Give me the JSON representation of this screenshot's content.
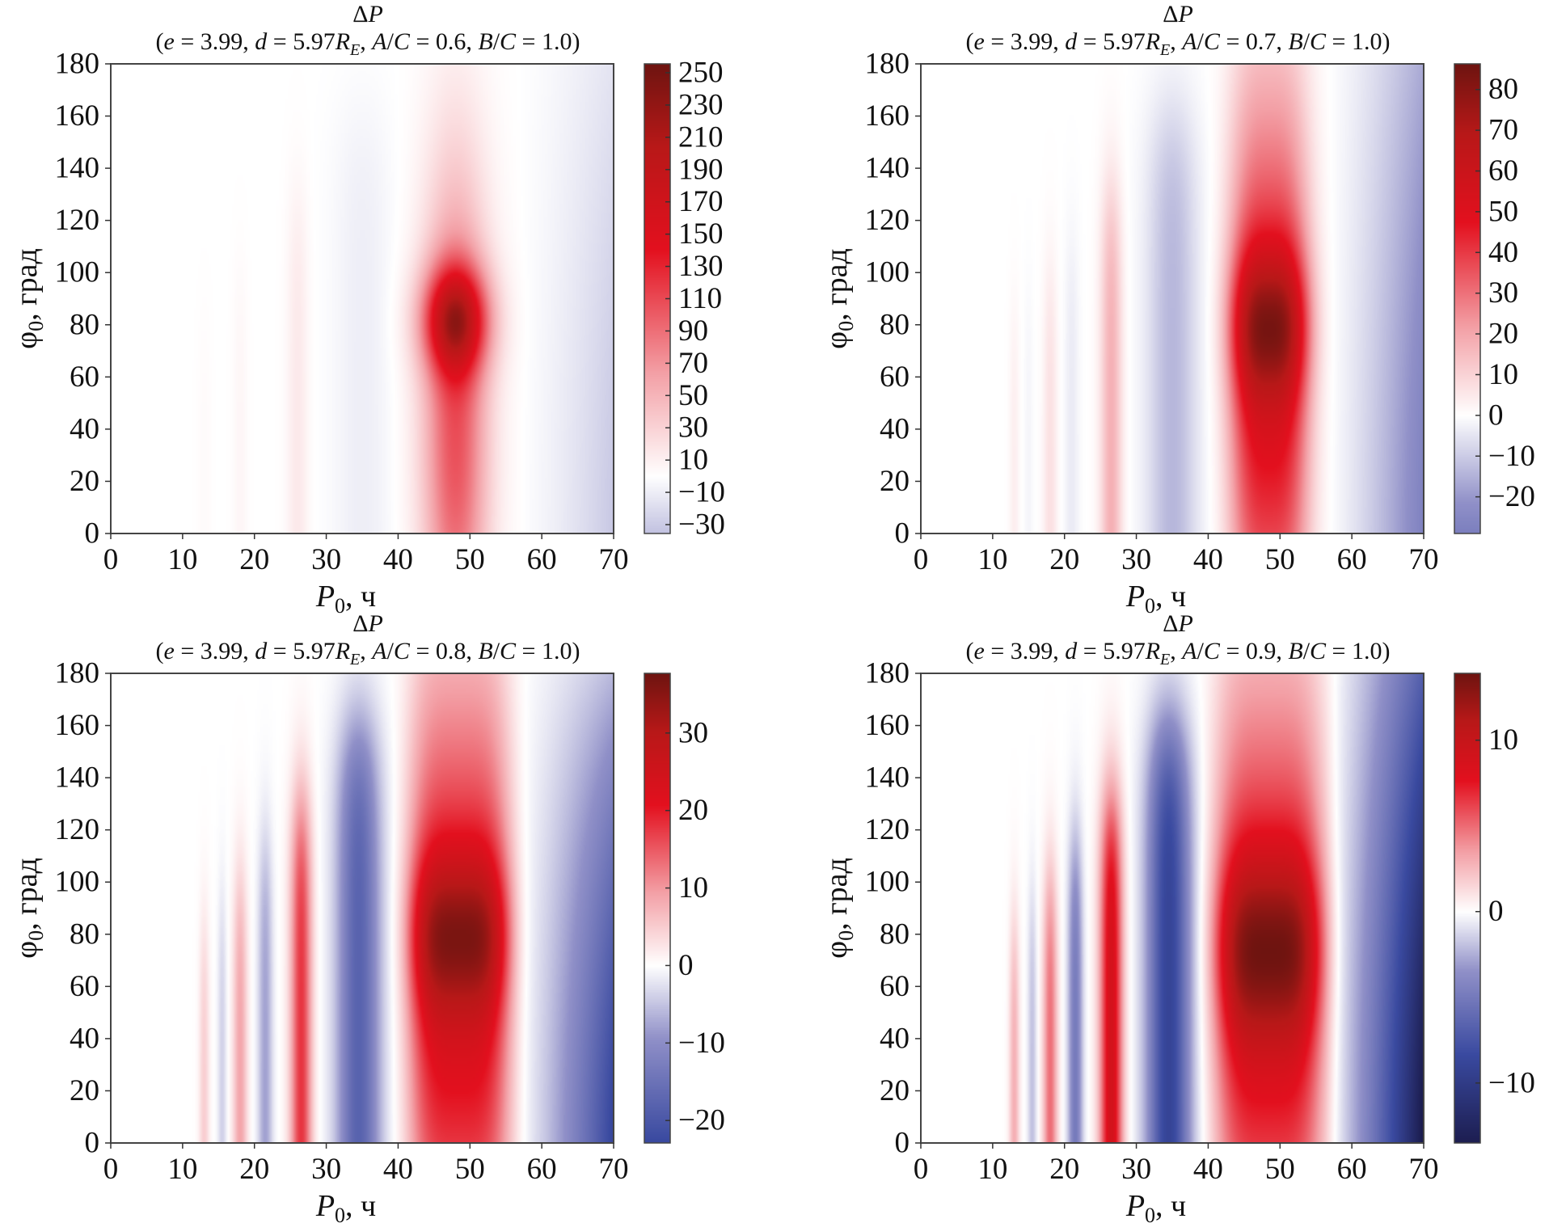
{
  "chart_data": [
    {
      "type": "heatmap",
      "title": "ΔP",
      "subtitle_segments": [
        [
          "(",
          ""
        ],
        [
          "e",
          "i"
        ],
        [
          " = 3.99, ",
          ""
        ],
        [
          "d",
          "i"
        ],
        [
          " = 5.97",
          ""
        ],
        [
          "R",
          "i"
        ],
        [
          "E",
          "sub"
        ],
        [
          ", ",
          ""
        ],
        [
          "A",
          "i"
        ],
        [
          "/",
          ""
        ],
        [
          "C",
          "i"
        ],
        [
          " = 0.6, ",
          ""
        ],
        [
          "B",
          "i"
        ],
        [
          "/",
          ""
        ],
        [
          "C",
          "i"
        ],
        [
          " = 1.0)",
          ""
        ]
      ],
      "xlabel": "P",
      "xlabel_sub": "0",
      "xlabel_unit": ", ч",
      "ylabel": "φ",
      "ylabel_sub": "0",
      "ylabel_unit": ", град",
      "xlim": [
        0,
        70
      ],
      "ylim": [
        0,
        180
      ],
      "xticks": [
        "0",
        "10",
        "20",
        "30",
        "40",
        "50",
        "60",
        "70"
      ],
      "yticks": [
        "0",
        "20",
        "40",
        "60",
        "80",
        "100",
        "120",
        "140",
        "160",
        "180"
      ],
      "colorbar": {
        "range": [
          -35.5,
          255.5
        ],
        "norm_abs_max": 255.5,
        "ticks": [
          "250",
          "230",
          "210",
          "190",
          "170",
          "150",
          "130",
          "110",
          "90",
          "70",
          "50",
          "30",
          "10",
          "−10",
          "−30"
        ],
        "tick_values": [
          250,
          230,
          210,
          190,
          170,
          150,
          130,
          110,
          90,
          70,
          50,
          30,
          10,
          -10,
          -30
        ]
      },
      "model": {
        "main": {
          "P0": 48,
          "width": 4.5,
          "power": 2,
          "amplitude": 255,
          "base": 0.42,
          "base_center": 40,
          "base_sigma": 95,
          "peak": 0.58,
          "peak_center": 82,
          "peak_sigma": 20
        },
        "bands": [
          [
            13,
            1,
            3
          ],
          [
            18,
            1,
            6
          ],
          [
            26,
            1.5,
            15
          ],
          [
            35,
            4,
            -10
          ]
        ],
        "right": {
          "amplitude": -32,
          "top_fade": 0.5
        }
      }
    },
    {
      "type": "heatmap",
      "title": "ΔP",
      "subtitle_segments": [
        [
          "(",
          ""
        ],
        [
          "e",
          "i"
        ],
        [
          " = 3.99, ",
          ""
        ],
        [
          "d",
          "i"
        ],
        [
          " = 5.97",
          ""
        ],
        [
          "R",
          "i"
        ],
        [
          "E",
          "sub"
        ],
        [
          ", ",
          ""
        ],
        [
          "A",
          "i"
        ],
        [
          "/",
          ""
        ],
        [
          "C",
          "i"
        ],
        [
          " = 0.7, ",
          ""
        ],
        [
          "B",
          "i"
        ],
        [
          "/",
          ""
        ],
        [
          "C",
          "i"
        ],
        [
          " = 1.0)",
          ""
        ]
      ],
      "xlabel": "P",
      "xlabel_sub": "0",
      "xlabel_unit": ", ч",
      "ylabel": "φ",
      "ylabel_sub": "0",
      "ylabel_unit": ", град",
      "xlim": [
        0,
        70
      ],
      "ylim": [
        0,
        180
      ],
      "xticks": [
        "0",
        "10",
        "20",
        "30",
        "40",
        "50",
        "60",
        "70"
      ],
      "yticks": [
        "0",
        "20",
        "40",
        "60",
        "80",
        "100",
        "120",
        "140",
        "160",
        "180"
      ],
      "colorbar": {
        "range": [
          -29,
          86.3
        ],
        "norm_abs_max": 86.3,
        "ticks": [
          "80",
          "70",
          "60",
          "50",
          "40",
          "30",
          "20",
          "10",
          "0",
          "−10",
          "−20"
        ],
        "tick_values": [
          80,
          70,
          60,
          50,
          40,
          30,
          20,
          10,
          0,
          -10,
          -20
        ]
      },
      "model": {
        "main": {
          "P0": 48.5,
          "width": 5.5,
          "power": 3,
          "amplitude": 86,
          "base": 0.6,
          "base_center": 60,
          "base_sigma": 110,
          "peak": 0.4,
          "peak_center": 80,
          "peak_sigma": 28
        },
        "bands": [
          [
            13,
            0.7,
            4
          ],
          [
            15,
            0.6,
            -2
          ],
          [
            18,
            1,
            7
          ],
          [
            21,
            1,
            -4
          ],
          [
            26.5,
            1.5,
            18
          ],
          [
            35,
            3.5,
            -14
          ]
        ],
        "right": {
          "amplitude": -28,
          "top_fade": 0.4
        }
      }
    },
    {
      "type": "heatmap",
      "title": "ΔP",
      "subtitle_segments": [
        [
          "(",
          ""
        ],
        [
          "e",
          "i"
        ],
        [
          " = 3.99, ",
          ""
        ],
        [
          "d",
          "i"
        ],
        [
          " = 5.97",
          ""
        ],
        [
          "R",
          "i"
        ],
        [
          "E",
          "sub"
        ],
        [
          ", ",
          ""
        ],
        [
          "A",
          "i"
        ],
        [
          "/",
          ""
        ],
        [
          "C",
          "i"
        ],
        [
          " = 0.8, ",
          ""
        ],
        [
          "B",
          "i"
        ],
        [
          "/",
          ""
        ],
        [
          "C",
          "i"
        ],
        [
          " = 1.0)",
          ""
        ]
      ],
      "xlabel": "P",
      "xlabel_sub": "0",
      "xlabel_unit": ", ч",
      "ylabel": "φ",
      "ylabel_sub": "0",
      "ylabel_unit": ", град",
      "xlim": [
        0,
        70
      ],
      "ylim": [
        0,
        180
      ],
      "xticks": [
        "0",
        "10",
        "20",
        "30",
        "40",
        "50",
        "60",
        "70"
      ],
      "yticks": [
        "0",
        "20",
        "40",
        "60",
        "80",
        "100",
        "120",
        "140",
        "160",
        "180"
      ],
      "colorbar": {
        "range": [
          -22.9,
          37.7
        ],
        "norm_abs_max": 37.7,
        "ticks": [
          "30",
          "20",
          "10",
          "0",
          "−10",
          "−20"
        ],
        "tick_values": [
          30,
          20,
          10,
          0,
          -10,
          -20
        ]
      },
      "model": {
        "main": {
          "P0": 48.5,
          "width": 7,
          "power": 4,
          "amplitude": 37,
          "base": 0.62,
          "base_center": 60,
          "base_sigma": 120,
          "peak": 0.38,
          "peak_center": 80,
          "peak_sigma": 30
        },
        "bands": [
          [
            13,
            0.7,
            5
          ],
          [
            15.5,
            0.6,
            -4
          ],
          [
            18,
            1,
            9
          ],
          [
            21.5,
            1,
            -8
          ],
          [
            26.5,
            1.5,
            18
          ],
          [
            34.5,
            3,
            -18
          ]
        ],
        "right": {
          "amplitude": -24,
          "top_fade": 0.75
        }
      }
    },
    {
      "type": "heatmap",
      "title": "ΔP",
      "subtitle_segments": [
        [
          "(",
          ""
        ],
        [
          "e",
          "i"
        ],
        [
          " = 3.99, ",
          ""
        ],
        [
          "d",
          "i"
        ],
        [
          " = 5.97",
          ""
        ],
        [
          "R",
          "i"
        ],
        [
          "E",
          "sub"
        ],
        [
          ", ",
          ""
        ],
        [
          "A",
          "i"
        ],
        [
          "/",
          ""
        ],
        [
          "C",
          "i"
        ],
        [
          " = 0.9, ",
          ""
        ],
        [
          "B",
          "i"
        ],
        [
          "/",
          ""
        ],
        [
          "C",
          "i"
        ],
        [
          " = 1.0)",
          ""
        ]
      ],
      "xlabel": "P",
      "xlabel_sub": "0",
      "xlabel_unit": ", ч",
      "ylabel": "φ",
      "ylabel_sub": "0",
      "ylabel_unit": ", град",
      "xlim": [
        0,
        70
      ],
      "ylim": [
        0,
        180
      ],
      "xticks": [
        "0",
        "10",
        "20",
        "30",
        "40",
        "50",
        "60",
        "70"
      ],
      "yticks": [
        "0",
        "20",
        "40",
        "60",
        "80",
        "100",
        "120",
        "140",
        "160",
        "180"
      ],
      "colorbar": {
        "range": [
          -13.5,
          13.9
        ],
        "norm_abs_max": 13.9,
        "ticks": [
          "10",
          "0",
          "−10"
        ],
        "tick_values": [
          10,
          0,
          -10
        ]
      },
      "model": {
        "main": {
          "P0": 48.5,
          "width": 7.5,
          "power": 4,
          "amplitude": 14,
          "base": 0.6,
          "base_center": 60,
          "base_sigma": 120,
          "peak": 0.4,
          "peak_center": 75,
          "peak_sigma": 35
        },
        "bands": [
          [
            13,
            0.7,
            3
          ],
          [
            15.5,
            0.6,
            -2
          ],
          [
            18,
            1,
            5
          ],
          [
            21.5,
            1,
            -5
          ],
          [
            26.5,
            1.6,
            9
          ],
          [
            34.5,
            3,
            -9
          ]
        ],
        "right": {
          "amplitude": -14,
          "top_fade": 0.5
        }
      }
    }
  ],
  "colors": {
    "min": "#1a1a4a",
    "blue": "#3a4aa0",
    "light_blue": "#9090c8",
    "zero": "#ffffff",
    "pink": "#f3a0a6",
    "red": "#e3101e",
    "dark_red": "#b81818",
    "max": "#6e1410"
  }
}
